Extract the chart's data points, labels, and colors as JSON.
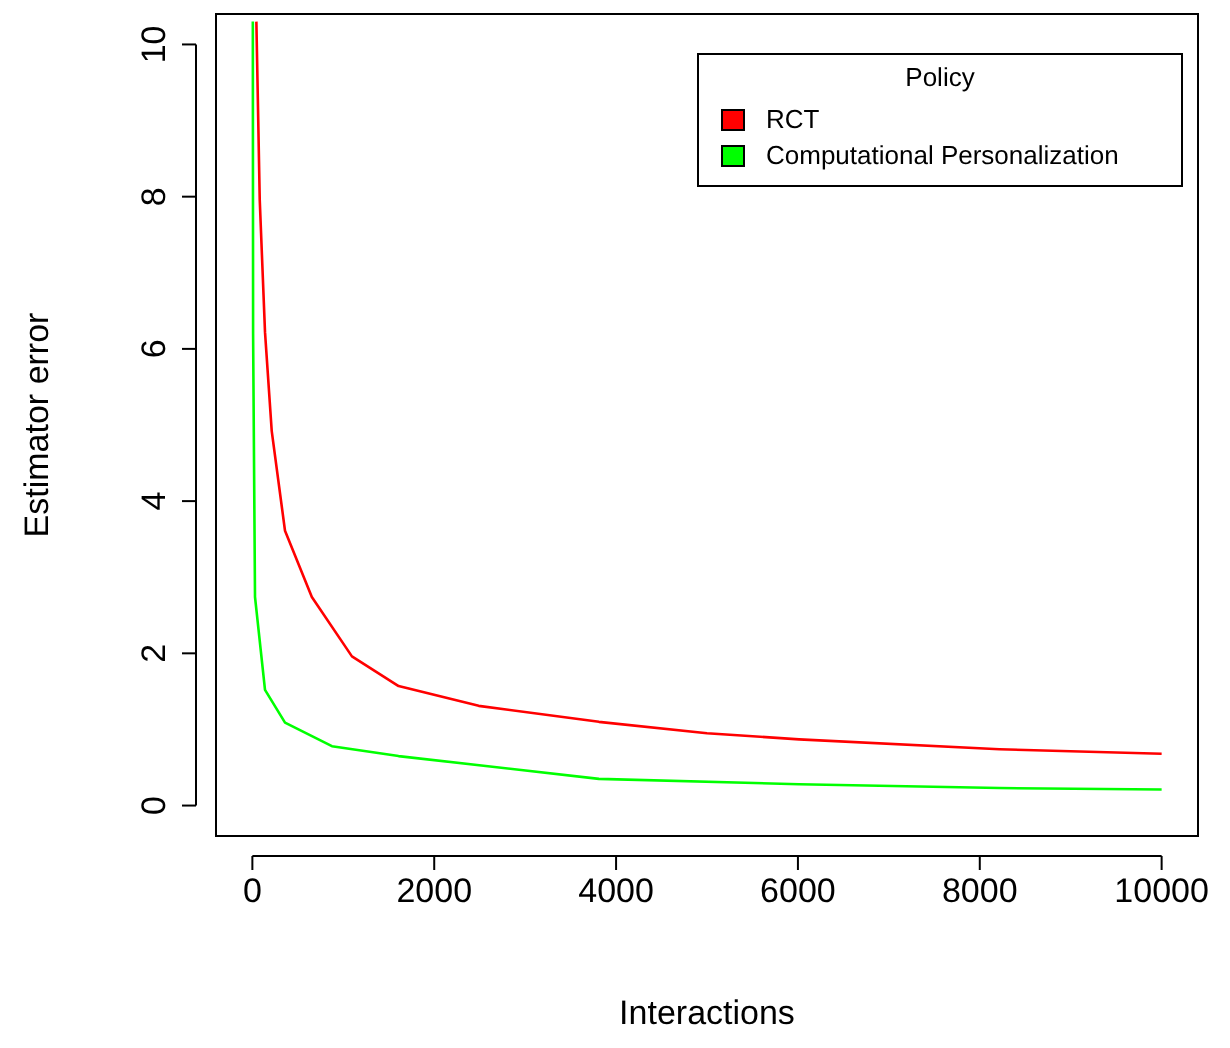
{
  "chart_data": {
    "type": "line",
    "xlabel": "Interactions",
    "ylabel": "Estimator error",
    "legend_title": "Policy",
    "legend": "top right",
    "xlim": [
      -400,
      10400
    ],
    "ylim": [
      -0.4,
      10.4
    ],
    "xticks": [
      0,
      2000,
      4000,
      6000,
      8000,
      10000
    ],
    "yticks": [
      0,
      2,
      4,
      6,
      8,
      10
    ],
    "grid": false,
    "marker": "none",
    "line_style": "solid",
    "series": [
      {
        "name": "RCT",
        "color": "#ff0000",
        "x": [
          44,
          81,
          139,
          213,
          359,
          654,
          1095,
          1608,
          2489,
          3811,
          5000,
          6013,
          8216,
          10000
        ],
        "values": [
          10.3,
          7.96,
          6.22,
          4.92,
          3.61,
          2.74,
          1.96,
          1.57,
          1.31,
          1.1,
          0.95,
          0.87,
          0.74,
          0.68
        ]
      },
      {
        "name": "Computational Personalization",
        "color": "#00ff00",
        "x": [
          5,
          8,
          29,
          139,
          359,
          875,
          1608,
          3811,
          6013,
          8216,
          10000
        ],
        "values": [
          10.3,
          6.2,
          2.74,
          1.52,
          1.09,
          0.78,
          0.65,
          0.35,
          0.28,
          0.23,
          0.21
        ]
      }
    ]
  }
}
